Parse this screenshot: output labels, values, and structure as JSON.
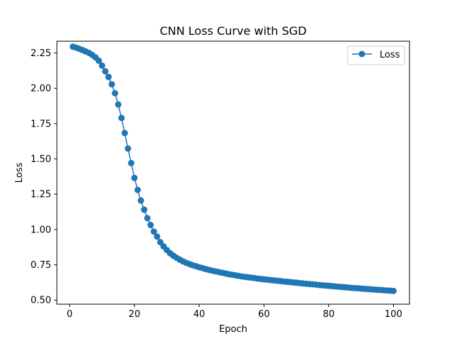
{
  "chart_data": {
    "type": "line",
    "title": "CNN Loss Curve with SGD",
    "xlabel": "Epoch",
    "ylabel": "Loss",
    "xlim": [
      -3.95,
      104.95
    ],
    "ylim": [
      0.471,
      2.333
    ],
    "xticks": [
      0,
      20,
      40,
      60,
      80,
      100
    ],
    "xtick_labels": [
      "0",
      "20",
      "40",
      "60",
      "80",
      "100"
    ],
    "yticks": [
      0.5,
      0.75,
      1.0,
      1.25,
      1.5,
      1.75,
      2.0,
      2.25
    ],
    "ytick_labels": [
      "0.50",
      "0.75",
      "1.00",
      "1.25",
      "1.50",
      "1.75",
      "2.00",
      "2.25"
    ],
    "grid": false,
    "legend_position": "upper right",
    "series": [
      {
        "name": "Loss",
        "color": "#1f77b4",
        "marker": "circle",
        "x": [
          1,
          2,
          3,
          4,
          5,
          6,
          7,
          8,
          9,
          10,
          11,
          12,
          13,
          14,
          15,
          16,
          17,
          18,
          19,
          20,
          21,
          22,
          23,
          24,
          25,
          26,
          27,
          28,
          29,
          30,
          31,
          32,
          33,
          34,
          35,
          36,
          37,
          38,
          39,
          40,
          41,
          42,
          43,
          44,
          45,
          46,
          47,
          48,
          49,
          50,
          51,
          52,
          53,
          54,
          55,
          56,
          57,
          58,
          59,
          60,
          61,
          62,
          63,
          64,
          65,
          66,
          67,
          68,
          69,
          70,
          71,
          72,
          73,
          74,
          75,
          76,
          77,
          78,
          79,
          80,
          81,
          82,
          83,
          84,
          85,
          86,
          87,
          88,
          89,
          90,
          91,
          92,
          93,
          94,
          95,
          96,
          97,
          98,
          99,
          100
        ],
        "y": [
          2.294,
          2.288,
          2.279,
          2.27,
          2.26,
          2.25,
          2.235,
          2.218,
          2.195,
          2.16,
          2.12,
          2.08,
          2.028,
          1.965,
          1.885,
          1.79,
          1.683,
          1.573,
          1.47,
          1.365,
          1.28,
          1.205,
          1.14,
          1.08,
          1.032,
          0.985,
          0.95,
          0.91,
          0.88,
          0.855,
          0.832,
          0.815,
          0.8,
          0.786,
          0.774,
          0.764,
          0.755,
          0.747,
          0.74,
          0.733,
          0.727,
          0.72,
          0.714,
          0.709,
          0.704,
          0.699,
          0.694,
          0.689,
          0.684,
          0.68,
          0.676,
          0.672,
          0.668,
          0.665,
          0.662,
          0.659,
          0.656,
          0.653,
          0.65,
          0.647,
          0.645,
          0.642,
          0.64,
          0.637,
          0.635,
          0.632,
          0.63,
          0.628,
          0.625,
          0.623,
          0.621,
          0.618,
          0.616,
          0.614,
          0.612,
          0.61,
          0.607,
          0.605,
          0.603,
          0.601,
          0.599,
          0.597,
          0.595,
          0.593,
          0.591,
          0.589,
          0.587,
          0.585,
          0.584,
          0.582,
          0.58,
          0.578,
          0.577,
          0.575,
          0.573,
          0.572,
          0.57,
          0.568,
          0.567,
          0.565
        ]
      }
    ]
  }
}
